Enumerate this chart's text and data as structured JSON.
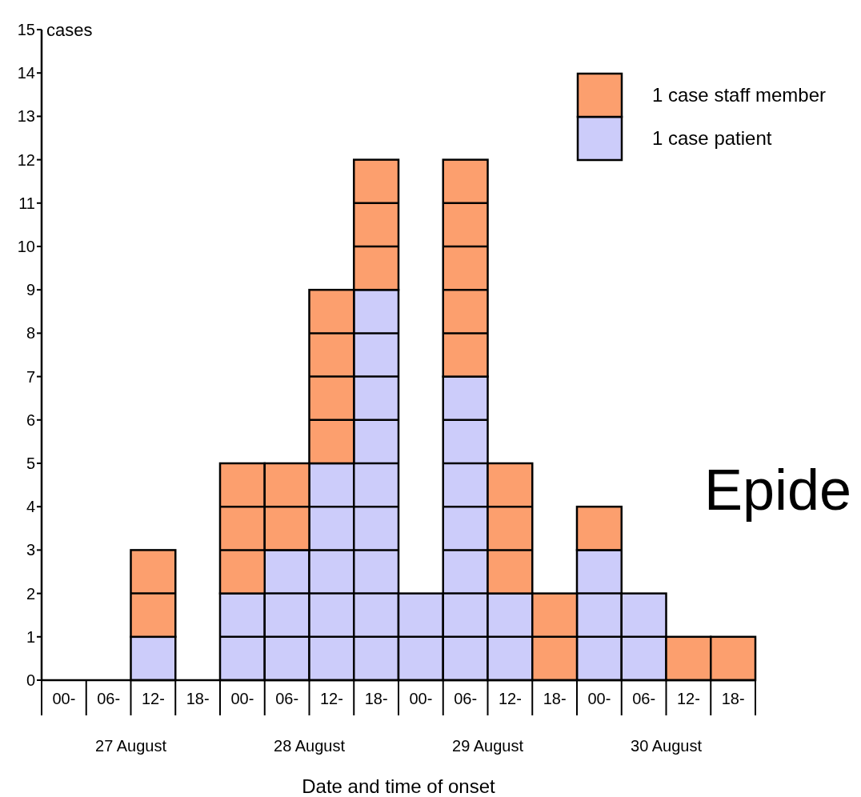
{
  "chart_data": {
    "type": "bar",
    "stacked": true,
    "xlabel": "Date and time of onset",
    "ylabel": "cases",
    "ylim": [
      0,
      15
    ],
    "yticks": [
      0,
      1,
      2,
      3,
      4,
      5,
      6,
      7,
      8,
      9,
      10,
      11,
      12,
      13,
      14,
      15
    ],
    "categories": [
      "00-",
      "06-",
      "12-",
      "18-",
      "00-",
      "06-",
      "12-",
      "18-",
      "00-",
      "06-",
      "12-",
      "18-",
      "00-",
      "06-",
      "12-",
      "18-"
    ],
    "series": [
      {
        "name": "1 case patient",
        "color": "#ccccfa",
        "values": [
          0,
          0,
          1,
          0,
          2,
          3,
          5,
          9,
          2,
          7,
          2,
          0,
          3,
          2,
          0,
          0
        ]
      },
      {
        "name": "1 case staff member",
        "color": "#fc9f6e",
        "values": [
          0,
          0,
          2,
          0,
          3,
          2,
          4,
          3,
          0,
          5,
          3,
          2,
          1,
          0,
          1,
          1
        ]
      }
    ],
    "legend": "top right",
    "grid": false,
    "annotations": [
      "27 August",
      "28 August",
      "29 August",
      "30 August",
      "Epide"
    ]
  }
}
